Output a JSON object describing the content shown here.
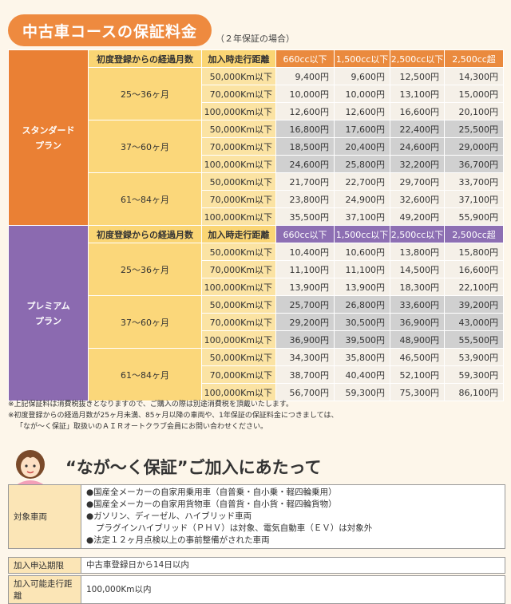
{
  "title": "中古車コースの保証料金",
  "title_note": "（２年保証の場合）",
  "headers": {
    "age": "初度登録からの経過月数",
    "km": "加入時走行距離",
    "cc": [
      "660cc以下",
      "1,500cc以下",
      "2,500cc以下",
      "2,500cc超"
    ]
  },
  "standard": {
    "plan_line1": "スタンダード",
    "plan_line2": "プラン",
    "groups": [
      {
        "age": "25～36ヶ月",
        "rows": [
          {
            "km": "50,000Km以下",
            "v": [
              "9,400円",
              "9,600円",
              "12,500円",
              "14,300円"
            ]
          },
          {
            "km": "70,000Km以下",
            "v": [
              "10,000円",
              "10,000円",
              "13,100円",
              "15,000円"
            ]
          },
          {
            "km": "100,000Km以下",
            "v": [
              "12,600円",
              "12,600円",
              "16,600円",
              "20,100円"
            ]
          }
        ]
      },
      {
        "age": "37～60ヶ月",
        "rows": [
          {
            "km": "50,000Km以下",
            "v": [
              "16,800円",
              "17,600円",
              "22,400円",
              "25,500円"
            ]
          },
          {
            "km": "70,000Km以下",
            "v": [
              "18,500円",
              "20,400円",
              "24,600円",
              "29,000円"
            ]
          },
          {
            "km": "100,000Km以下",
            "v": [
              "24,600円",
              "25,800円",
              "32,200円",
              "36,700円"
            ]
          }
        ]
      },
      {
        "age": "61～84ヶ月",
        "rows": [
          {
            "km": "50,000Km以下",
            "v": [
              "21,700円",
              "22,700円",
              "29,700円",
              "33,700円"
            ]
          },
          {
            "km": "70,000Km以下",
            "v": [
              "23,800円",
              "24,900円",
              "32,600円",
              "37,100円"
            ]
          },
          {
            "km": "100,000Km以下",
            "v": [
              "35,500円",
              "37,100円",
              "49,200円",
              "55,900円"
            ]
          }
        ]
      }
    ]
  },
  "premium": {
    "plan_line1": "プレミアム",
    "plan_line2": "プラン",
    "groups": [
      {
        "age": "25～36ヶ月",
        "rows": [
          {
            "km": "50,000Km以下",
            "v": [
              "10,400円",
              "10,600円",
              "13,800円",
              "15,800円"
            ]
          },
          {
            "km": "70,000Km以下",
            "v": [
              "11,100円",
              "11,100円",
              "14,500円",
              "16,600円"
            ]
          },
          {
            "km": "100,000Km以下",
            "v": [
              "13,900円",
              "13,900円",
              "18,300円",
              "22,100円"
            ]
          }
        ]
      },
      {
        "age": "37～60ヶ月",
        "rows": [
          {
            "km": "50,000Km以下",
            "v": [
              "25,700円",
              "26,800円",
              "33,600円",
              "39,200円"
            ]
          },
          {
            "km": "70,000Km以下",
            "v": [
              "29,200円",
              "30,500円",
              "36,900円",
              "43,000円"
            ]
          },
          {
            "km": "100,000Km以下",
            "v": [
              "36,900円",
              "39,500円",
              "48,900円",
              "55,500円"
            ]
          }
        ]
      },
      {
        "age": "61～84ヶ月",
        "rows": [
          {
            "km": "50,000Km以下",
            "v": [
              "34,300円",
              "35,800円",
              "46,500円",
              "53,900円"
            ]
          },
          {
            "km": "70,000Km以下",
            "v": [
              "38,700円",
              "40,400円",
              "52,100円",
              "59,300円"
            ]
          },
          {
            "km": "100,000Km以下",
            "v": [
              "56,700円",
              "59,300円",
              "75,300円",
              "86,100円"
            ]
          }
        ]
      }
    ]
  },
  "notes": [
    "※上記保証料は消費税抜きとなりますので、ご購入の際は別途消費税を頂戴いたします。",
    "※初度登録からの経過月数が25ヶ月未満、85ヶ月以降の車両や、1年保証の保証料金につきましては、",
    "「なが～く保証」取扱いのＡＩＲオートクラブ会員にお問い合わせください。"
  ],
  "section_title": "“なが～く保証”ご加入にあたって",
  "info": {
    "target_label": "対象車両",
    "target_lines": [
      "●国産全メーカーの自家用乗用車（自普乗・自小乗・軽四輪乗用）",
      "●国産全メーカーの自家用貨物車（自普貨・自小貨・軽四輪貨物）",
      "●ガソリン、ディーゼル、ハイブリッド車両",
      "プラグインハイブリッド（ＰＨＶ）は対象、電気自動車（ＥＶ）は対象外",
      "●法定１２ヶ月点検以上の事前整備がされた車両"
    ],
    "deadline_label": "加入申込期限",
    "deadline_value": "中古車登録日から14日以内",
    "mileage_label": "加入可能走行距離",
    "mileage_value": "100,000Km以内"
  },
  "colors": {
    "orange": "#ea8034",
    "purple": "#8b6ab0"
  }
}
